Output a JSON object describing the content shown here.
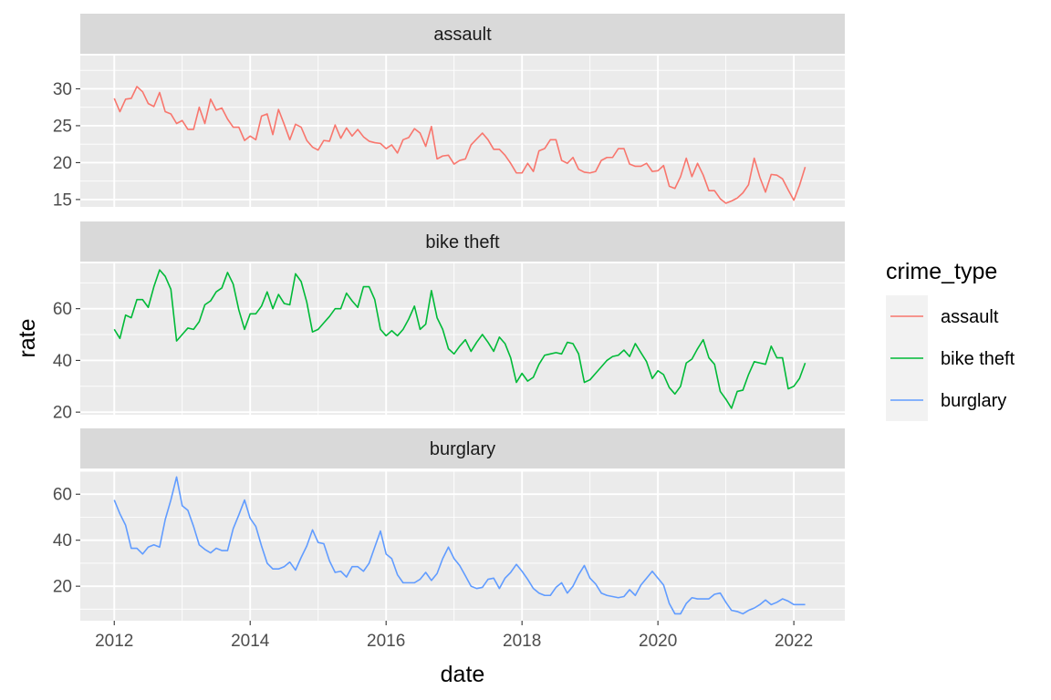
{
  "chart_data": {
    "type": "line",
    "facet_by": "crime_type",
    "xlabel": "date",
    "ylabel": "rate",
    "x_ticks": [
      2012,
      2014,
      2016,
      2018,
      2020,
      2022
    ],
    "xlim": [
      2011.5,
      2022.75
    ],
    "grid": true,
    "legend": {
      "title": "crime_type",
      "placement": "right"
    },
    "x": [
      2012.0,
      2012.083,
      2012.167,
      2012.25,
      2012.333,
      2012.417,
      2012.5,
      2012.583,
      2012.667,
      2012.75,
      2012.833,
      2012.917,
      2013.0,
      2013.083,
      2013.167,
      2013.25,
      2013.333,
      2013.417,
      2013.5,
      2013.583,
      2013.667,
      2013.75,
      2013.833,
      2013.917,
      2014.0,
      2014.083,
      2014.167,
      2014.25,
      2014.333,
      2014.417,
      2014.5,
      2014.583,
      2014.667,
      2014.75,
      2014.833,
      2014.917,
      2015.0,
      2015.083,
      2015.167,
      2015.25,
      2015.333,
      2015.417,
      2015.5,
      2015.583,
      2015.667,
      2015.75,
      2015.833,
      2015.917,
      2016.0,
      2016.083,
      2016.167,
      2016.25,
      2016.333,
      2016.417,
      2016.5,
      2016.583,
      2016.667,
      2016.75,
      2016.833,
      2016.917,
      2017.0,
      2017.083,
      2017.167,
      2017.25,
      2017.333,
      2017.417,
      2017.5,
      2017.583,
      2017.667,
      2017.75,
      2017.833,
      2017.917,
      2018.0,
      2018.083,
      2018.167,
      2018.25,
      2018.333,
      2018.417,
      2018.5,
      2018.583,
      2018.667,
      2018.75,
      2018.833,
      2018.917,
      2019.0,
      2019.083,
      2019.167,
      2019.25,
      2019.333,
      2019.417,
      2019.5,
      2019.583,
      2019.667,
      2019.75,
      2019.833,
      2019.917,
      2020.0,
      2020.083,
      2020.167,
      2020.25,
      2020.333,
      2020.417,
      2020.5,
      2020.583,
      2020.667,
      2020.75,
      2020.833,
      2020.917,
      2021.0,
      2021.083,
      2021.167,
      2021.25,
      2021.333,
      2021.417,
      2021.5,
      2021.583,
      2021.667,
      2021.75,
      2021.833,
      2021.917,
      2022.0,
      2022.083,
      2022.167
    ],
    "series": [
      {
        "name": "assault",
        "color": "#F8766D",
        "strip_label": "assault",
        "ylim": [
          14.0,
          34.5
        ],
        "y_ticks": [
          15,
          20,
          25,
          30
        ],
        "values": [
          28.7,
          26.9,
          28.6,
          28.7,
          30.3,
          29.6,
          28.0,
          27.6,
          29.5,
          26.9,
          26.6,
          25.3,
          25.7,
          24.5,
          24.5,
          27.5,
          25.3,
          28.6,
          27.1,
          27.4,
          25.9,
          24.8,
          24.8,
          23.0,
          23.6,
          23.1,
          26.3,
          26.6,
          23.8,
          27.2,
          25.2,
          23.1,
          25.2,
          24.8,
          23.0,
          22.1,
          21.7,
          23.0,
          22.9,
          25.1,
          23.3,
          24.7,
          23.6,
          24.5,
          23.5,
          22.9,
          22.7,
          22.6,
          21.9,
          22.4,
          21.3,
          23.1,
          23.4,
          24.6,
          24.0,
          22.2,
          24.9,
          20.5,
          20.9,
          21.0,
          19.8,
          20.3,
          20.5,
          22.4,
          23.2,
          24.0,
          23.1,
          21.8,
          21.8,
          21.0,
          19.9,
          18.6,
          18.6,
          19.9,
          18.8,
          21.6,
          21.9,
          23.1,
          23.1,
          20.3,
          19.9,
          20.7,
          19.1,
          18.7,
          18.6,
          18.8,
          20.3,
          20.7,
          20.7,
          21.9,
          21.9,
          19.8,
          19.5,
          19.5,
          19.9,
          18.8,
          18.9,
          19.6,
          16.8,
          16.5,
          18.1,
          20.6,
          18.1,
          19.9,
          18.3,
          16.2,
          16.2,
          15.1,
          14.5,
          14.8,
          15.2,
          15.9,
          17.0,
          20.6,
          18.0,
          16.0,
          18.4,
          18.3,
          17.8,
          16.3,
          14.9,
          16.9,
          19.4
        ]
      },
      {
        "name": "bike theft",
        "color": "#00BA38",
        "strip_label": "bike theft",
        "ylim": [
          19.0,
          77.5
        ],
        "y_ticks": [
          20,
          40,
          60
        ],
        "values": [
          52.0,
          48.5,
          57.5,
          56.5,
          63.5,
          63.5,
          60.5,
          68.5,
          75.0,
          72.5,
          67.5,
          47.5,
          50.0,
          52.5,
          52.0,
          55.0,
          61.5,
          63.0,
          66.5,
          68.0,
          74.0,
          69.5,
          59.5,
          52.0,
          58.0,
          58.0,
          61.0,
          66.5,
          60.0,
          65.5,
          62.0,
          61.5,
          73.5,
          70.5,
          62.5,
          51.0,
          52.0,
          54.5,
          57.0,
          60.0,
          60.0,
          66.0,
          63.0,
          60.5,
          68.5,
          68.5,
          63.5,
          52.0,
          49.5,
          51.5,
          49.5,
          52.0,
          56.0,
          61.0,
          52.0,
          54.0,
          67.0,
          56.5,
          52.0,
          44.5,
          42.5,
          45.5,
          48.0,
          43.5,
          47.0,
          50.0,
          47.0,
          43.5,
          49.0,
          46.5,
          41.0,
          31.5,
          35.0,
          32.0,
          33.5,
          38.5,
          42.0,
          42.5,
          43.0,
          42.5,
          47.0,
          46.5,
          42.5,
          31.5,
          32.5,
          35.0,
          37.5,
          40.0,
          41.5,
          42.0,
          44.0,
          41.5,
          46.5,
          43.0,
          39.5,
          33.0,
          36.0,
          34.5,
          29.5,
          27.0,
          30.0,
          39.0,
          40.5,
          44.5,
          48.0,
          41.0,
          38.5,
          28.0,
          25.0,
          21.5,
          28.0,
          28.5,
          34.5,
          39.5,
          39.0,
          38.5,
          45.5,
          41.0,
          41.0,
          29.0,
          30.0,
          33.0,
          39.0
        ]
      },
      {
        "name": "burglary",
        "color": "#619CFF",
        "strip_label": "burglary",
        "ylim": [
          5.0,
          70.0
        ],
        "y_ticks": [
          20,
          40,
          60
        ],
        "values": [
          57.5,
          51.5,
          46.5,
          36.5,
          36.5,
          34.0,
          37.0,
          38.0,
          37.0,
          49.0,
          57.5,
          67.5,
          55.0,
          53.0,
          46.0,
          38.0,
          36.0,
          34.5,
          36.5,
          35.5,
          35.5,
          45.0,
          51.0,
          57.5,
          49.5,
          46.0,
          37.5,
          30.0,
          27.5,
          27.5,
          28.5,
          30.5,
          27.0,
          32.5,
          37.5,
          44.5,
          39.0,
          38.5,
          31.0,
          26.0,
          26.5,
          24.0,
          28.5,
          28.5,
          26.5,
          30.0,
          37.0,
          44.0,
          34.0,
          32.0,
          25.0,
          21.5,
          21.5,
          21.5,
          23.0,
          26.0,
          22.5,
          25.5,
          32.0,
          37.0,
          32.0,
          29.0,
          24.5,
          20.0,
          19.0,
          19.5,
          23.0,
          23.5,
          19.0,
          23.5,
          26.0,
          29.5,
          26.5,
          23.0,
          19.0,
          17.0,
          16.0,
          16.0,
          19.5,
          21.5,
          17.0,
          20.0,
          25.0,
          29.0,
          23.5,
          21.0,
          17.0,
          16.0,
          15.5,
          15.0,
          15.5,
          18.5,
          16.0,
          20.5,
          23.5,
          26.5,
          23.5,
          20.5,
          12.5,
          8.0,
          8.0,
          12.5,
          15.0,
          14.5,
          14.5,
          14.5,
          16.5,
          17.0,
          13.0,
          9.5,
          9.0,
          8.0,
          9.5,
          10.5,
          12.0,
          14.0,
          12.0,
          13.0,
          14.5,
          13.5,
          12.0,
          12.0,
          12.0
        ]
      }
    ]
  }
}
